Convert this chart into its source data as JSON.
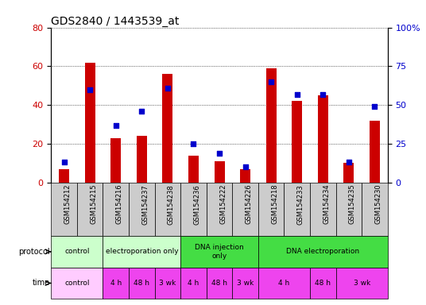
{
  "title": "GDS2840 / 1443539_at",
  "samples": [
    "GSM154212",
    "GSM154215",
    "GSM154216",
    "GSM154237",
    "GSM154238",
    "GSM154236",
    "GSM154222",
    "GSM154226",
    "GSM154218",
    "GSM154233",
    "GSM154234",
    "GSM154235",
    "GSM154230"
  ],
  "counts": [
    7,
    62,
    23,
    24,
    56,
    14,
    11,
    7,
    59,
    42,
    45,
    10,
    32
  ],
  "percentiles": [
    13,
    60,
    37,
    46,
    61,
    25,
    19,
    10,
    65,
    57,
    57,
    13,
    49
  ],
  "ylim_left": [
    0,
    80
  ],
  "ylim_right": [
    0,
    100
  ],
  "yticks_left": [
    0,
    20,
    40,
    60,
    80
  ],
  "yticks_right": [
    0,
    25,
    50,
    75,
    100
  ],
  "ytick_labels_right": [
    "0",
    "25",
    "50",
    "75",
    "100%"
  ],
  "bar_color": "#cc0000",
  "dot_color": "#0000cc",
  "proto_data": [
    {
      "label": "control",
      "start": 0,
      "end": 2,
      "color": "#ccffcc"
    },
    {
      "label": "electroporation only",
      "start": 2,
      "end": 5,
      "color": "#ccffcc"
    },
    {
      "label": "DNA injection\nonly",
      "start": 5,
      "end": 8,
      "color": "#44dd44"
    },
    {
      "label": "DNA electroporation",
      "start": 8,
      "end": 13,
      "color": "#44dd44"
    }
  ],
  "time_data": [
    {
      "label": "control",
      "start": 0,
      "end": 2,
      "color": "#ffccff"
    },
    {
      "label": "4 h",
      "start": 2,
      "end": 3,
      "color": "#ee44ee"
    },
    {
      "label": "48 h",
      "start": 3,
      "end": 4,
      "color": "#ee44ee"
    },
    {
      "label": "3 wk",
      "start": 4,
      "end": 5,
      "color": "#ee44ee"
    },
    {
      "label": "4 h",
      "start": 5,
      "end": 6,
      "color": "#ee44ee"
    },
    {
      "label": "48 h",
      "start": 6,
      "end": 7,
      "color": "#ee44ee"
    },
    {
      "label": "3 wk",
      "start": 7,
      "end": 8,
      "color": "#ee44ee"
    },
    {
      "label": "4 h",
      "start": 8,
      "end": 10,
      "color": "#ee44ee"
    },
    {
      "label": "48 h",
      "start": 10,
      "end": 11,
      "color": "#ee44ee"
    },
    {
      "label": "3 wk",
      "start": 11,
      "end": 13,
      "color": "#ee44ee"
    }
  ],
  "label_color_left": "#cc0000",
  "label_color_right": "#0000cc",
  "sample_box_color": "#cccccc",
  "bar_width": 0.4
}
